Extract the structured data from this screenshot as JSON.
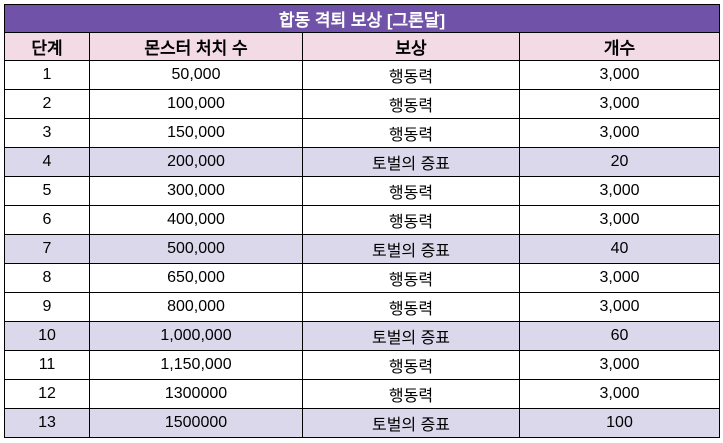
{
  "table": {
    "title": "합동 격퇴 보상 [그론달]",
    "headers": [
      "단계",
      "몬스터 처치 수",
      "보상",
      "개수"
    ],
    "rows": [
      {
        "stage": "1",
        "kills": "50,000",
        "reward": "행동력",
        "count": "3,000",
        "highlight": false
      },
      {
        "stage": "2",
        "kills": "100,000",
        "reward": "행동력",
        "count": "3,000",
        "highlight": false
      },
      {
        "stage": "3",
        "kills": "150,000",
        "reward": "행동력",
        "count": "3,000",
        "highlight": false
      },
      {
        "stage": "4",
        "kills": "200,000",
        "reward": "토벌의 증표",
        "count": "20",
        "highlight": true
      },
      {
        "stage": "5",
        "kills": "300,000",
        "reward": "행동력",
        "count": "3,000",
        "highlight": false
      },
      {
        "stage": "6",
        "kills": "400,000",
        "reward": "행동력",
        "count": "3,000",
        "highlight": false
      },
      {
        "stage": "7",
        "kills": "500,000",
        "reward": "토벌의 증표",
        "count": "40",
        "highlight": true
      },
      {
        "stage": "8",
        "kills": "650,000",
        "reward": "행동력",
        "count": "3,000",
        "highlight": false
      },
      {
        "stage": "9",
        "kills": "800,000",
        "reward": "행동력",
        "count": "3,000",
        "highlight": false
      },
      {
        "stage": "10",
        "kills": "1,000,000",
        "reward": "토벌의 증표",
        "count": "60",
        "highlight": true
      },
      {
        "stage": "11",
        "kills": "1,150,000",
        "reward": "행동력",
        "count": "3,000",
        "highlight": false
      },
      {
        "stage": "12",
        "kills": "1300000",
        "reward": "행동력",
        "count": "3,000",
        "highlight": false
      },
      {
        "stage": "13",
        "kills": "1500000",
        "reward": "토벌의 증표",
        "count": "100",
        "highlight": true
      }
    ]
  },
  "colors": {
    "title_bg": "#7052a8",
    "header_bg": "#f2dbe5",
    "highlight_row_bg": "#dcd8ec"
  }
}
